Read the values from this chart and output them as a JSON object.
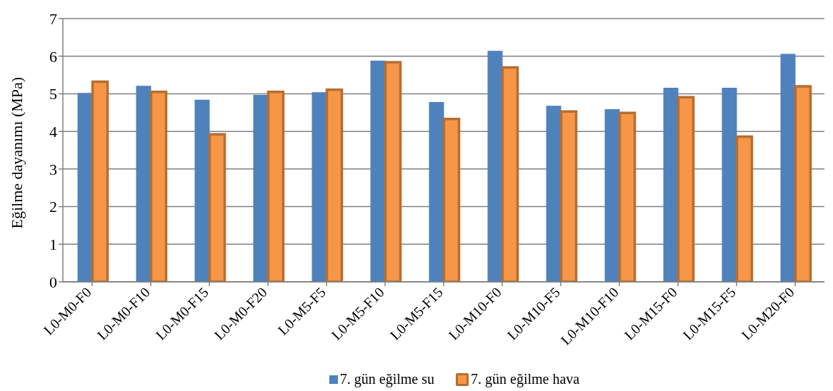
{
  "chart_data": {
    "type": "bar",
    "ylabel": "Eğilme dayanımı (MPa)",
    "categories": [
      "L0-M0-F0",
      "L0-M0-F10",
      "L0-M0-F15",
      "L0-M0-F20",
      "L0-M5-F5",
      "L0-M5-F10",
      "L0-M5-F15",
      "L0-M10-F0",
      "L0-M10-F5",
      "L0-M10-F10",
      "L0-M15-F0",
      "L0-M15-F5",
      "L0-M20-F0"
    ],
    "series": [
      {
        "name": "7. gün eğilme su",
        "color": "#4f81bd",
        "values": [
          5.02,
          5.21,
          4.84,
          4.97,
          5.04,
          5.88,
          4.78,
          6.14,
          4.68,
          4.59,
          5.16,
          5.16,
          6.06
        ]
      },
      {
        "name": "7. gün eğilme hava",
        "color": "#f79646",
        "values": [
          5.32,
          5.05,
          3.92,
          5.05,
          5.11,
          5.84,
          4.33,
          5.7,
          4.53,
          4.49,
          4.91,
          3.86,
          5.2
        ]
      }
    ],
    "ylim": [
      0,
      7
    ],
    "yticks": [
      0,
      1,
      2,
      3,
      4,
      5,
      6,
      7
    ],
    "grid": "y",
    "legend": "bottom"
  }
}
